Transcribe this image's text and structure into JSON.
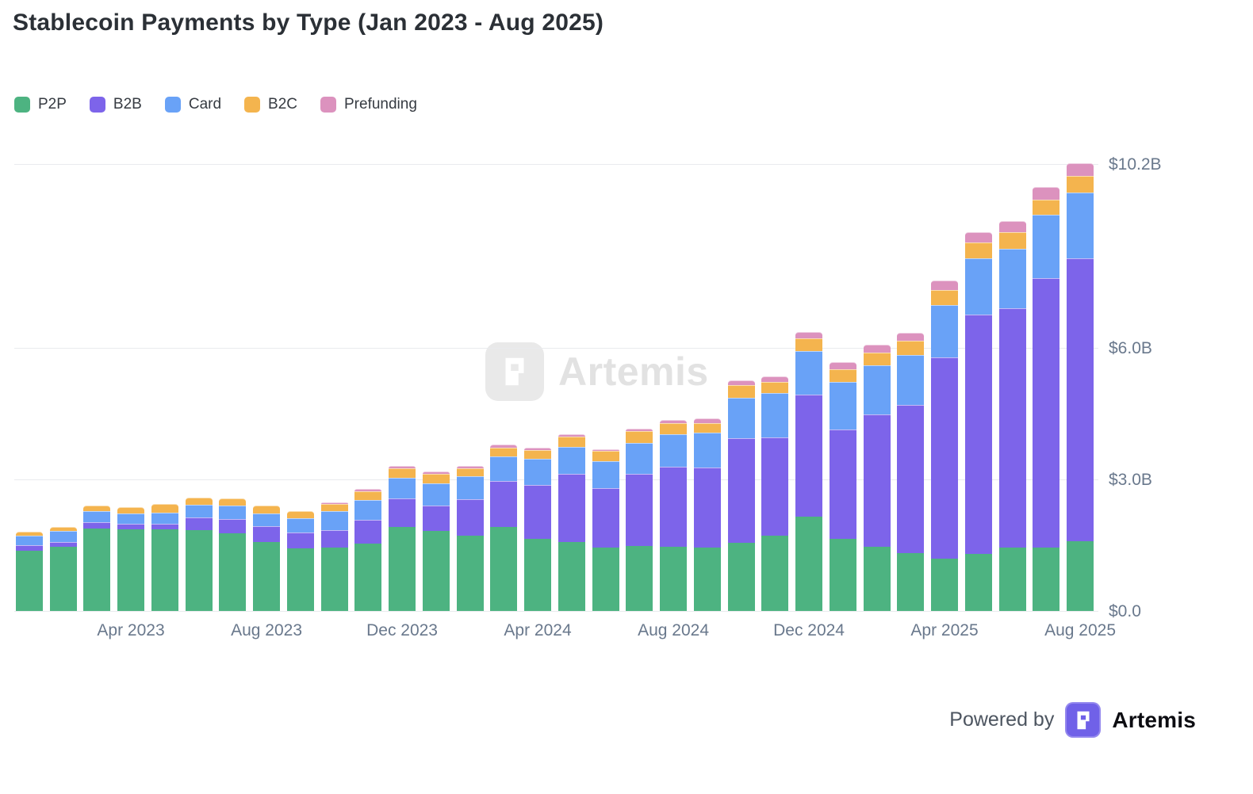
{
  "title": "Stablecoin Payments by Type (Jan 2023 - Aug 2025)",
  "watermark": {
    "text": "Artemis"
  },
  "footer": {
    "powered_by": "Powered by",
    "brand": "Artemis"
  },
  "chart_data": {
    "type": "bar",
    "stacked": true,
    "title": "Stablecoin Payments by Type (Jan 2023 - Aug 2025)",
    "unit": "USD billions",
    "ylim": [
      0,
      10.2
    ],
    "grid": true,
    "legend_position": "top-left",
    "y_axis_side": "right",
    "categories": [
      "Jan 2023",
      "Feb 2023",
      "Mar 2023",
      "Apr 2023",
      "May 2023",
      "Jun 2023",
      "Jul 2023",
      "Aug 2023",
      "Sep 2023",
      "Oct 2023",
      "Nov 2023",
      "Dec 2023",
      "Jan 2024",
      "Feb 2024",
      "Mar 2024",
      "Apr 2024",
      "May 2024",
      "Jun 2024",
      "Jul 2024",
      "Aug 2024",
      "Sep 2024",
      "Oct 2024",
      "Nov 2024",
      "Dec 2024",
      "Jan 2025",
      "Feb 2025",
      "Mar 2025",
      "Apr 2025",
      "May 2025",
      "Jun 2025",
      "Jul 2025",
      "Aug 2025"
    ],
    "series": [
      {
        "name": "P2P",
        "color": "#4db381",
        "values": [
          1.38,
          1.46,
          1.88,
          1.86,
          1.86,
          1.85,
          1.77,
          1.57,
          1.43,
          1.44,
          1.53,
          1.91,
          1.83,
          1.72,
          1.91,
          1.64,
          1.58,
          1.44,
          1.48,
          1.46,
          1.44,
          1.56,
          1.71,
          2.16,
          1.65,
          1.47,
          1.32,
          1.2,
          1.31,
          1.45,
          1.44,
          1.6
        ]
      },
      {
        "name": "B2B",
        "color": "#7d64ea",
        "values": [
          0.12,
          0.11,
          0.15,
          0.13,
          0.13,
          0.28,
          0.33,
          0.36,
          0.36,
          0.41,
          0.55,
          0.65,
          0.58,
          0.83,
          1.06,
          1.23,
          1.55,
          1.37,
          1.64,
          1.83,
          1.83,
          2.39,
          2.25,
          2.78,
          2.5,
          3.01,
          3.39,
          4.58,
          5.45,
          5.45,
          6.16,
          6.44
        ]
      },
      {
        "name": "Card",
        "color": "#69a2f7",
        "values": [
          0.21,
          0.25,
          0.25,
          0.24,
          0.26,
          0.3,
          0.31,
          0.29,
          0.32,
          0.42,
          0.46,
          0.47,
          0.5,
          0.53,
          0.55,
          0.6,
          0.61,
          0.61,
          0.72,
          0.75,
          0.79,
          0.92,
          1.01,
          0.99,
          1.07,
          1.12,
          1.14,
          1.2,
          1.29,
          1.36,
          1.45,
          1.5
        ]
      },
      {
        "name": "B2C",
        "color": "#f4b44e",
        "values": [
          0.09,
          0.09,
          0.12,
          0.14,
          0.2,
          0.15,
          0.15,
          0.18,
          0.16,
          0.17,
          0.19,
          0.22,
          0.21,
          0.18,
          0.21,
          0.21,
          0.23,
          0.23,
          0.26,
          0.25,
          0.23,
          0.28,
          0.26,
          0.29,
          0.29,
          0.29,
          0.31,
          0.34,
          0.36,
          0.38,
          0.33,
          0.38
        ]
      },
      {
        "name": "Prefunding",
        "color": "#dc92be",
        "values": [
          0,
          0,
          0,
          0,
          0,
          0,
          0,
          0,
          0,
          0.04,
          0.06,
          0.06,
          0.06,
          0.05,
          0.06,
          0.04,
          0.06,
          0.04,
          0.06,
          0.06,
          0.1,
          0.12,
          0.13,
          0.15,
          0.17,
          0.18,
          0.19,
          0.23,
          0.24,
          0.25,
          0.29,
          0.3
        ]
      }
    ],
    "y_ticks": [
      {
        "value": 0,
        "label": "$0.0"
      },
      {
        "value": 3,
        "label": "$3.0B"
      },
      {
        "value": 6,
        "label": "$6.0B"
      },
      {
        "value": 10.2,
        "label": "$10.2B"
      }
    ],
    "x_ticks": [
      {
        "index": 3,
        "label": "Apr 2023"
      },
      {
        "index": 7,
        "label": "Aug 2023"
      },
      {
        "index": 11,
        "label": "Dec 2023"
      },
      {
        "index": 15,
        "label": "Apr 2024"
      },
      {
        "index": 19,
        "label": "Aug 2024"
      },
      {
        "index": 23,
        "label": "Dec 2024"
      },
      {
        "index": 27,
        "label": "Apr 2025"
      },
      {
        "index": 31,
        "label": "Aug 2025"
      }
    ]
  }
}
